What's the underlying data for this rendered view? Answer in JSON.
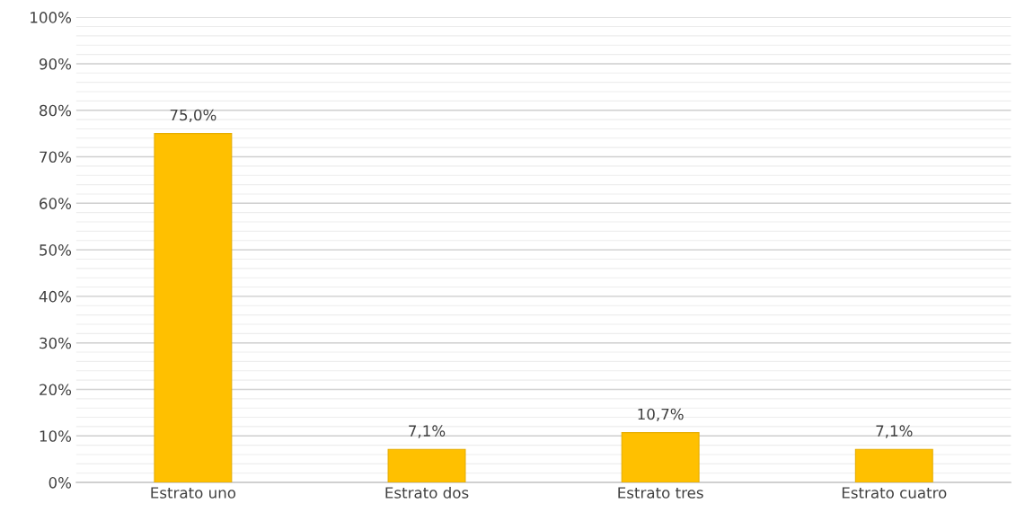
{
  "chart_data": {
    "type": "bar",
    "categories": [
      "Estrato uno",
      "Estrato dos",
      "Estrato tres",
      "Estrato cuatro"
    ],
    "values": [
      75.0,
      7.1,
      10.7,
      7.1
    ],
    "value_labels": [
      "75,0%",
      "7,1%",
      "10,7%",
      "7,1%"
    ],
    "color": "#ffc000",
    "ylim": [
      0,
      100
    ],
    "yticks": [
      {
        "value": 0,
        "label": "0%"
      },
      {
        "value": 10,
        "label": "10%"
      },
      {
        "value": 20,
        "label": "20%"
      },
      {
        "value": 30,
        "label": "30%"
      },
      {
        "value": 40,
        "label": "40%"
      },
      {
        "value": 50,
        "label": "50%"
      },
      {
        "value": 60,
        "label": "60%"
      },
      {
        "value": 70,
        "label": "70%"
      },
      {
        "value": 80,
        "label": "80%"
      },
      {
        "value": 90,
        "label": "90%"
      },
      {
        "value": 100,
        "label": "100%"
      }
    ],
    "grid": "y",
    "legend": false
  }
}
